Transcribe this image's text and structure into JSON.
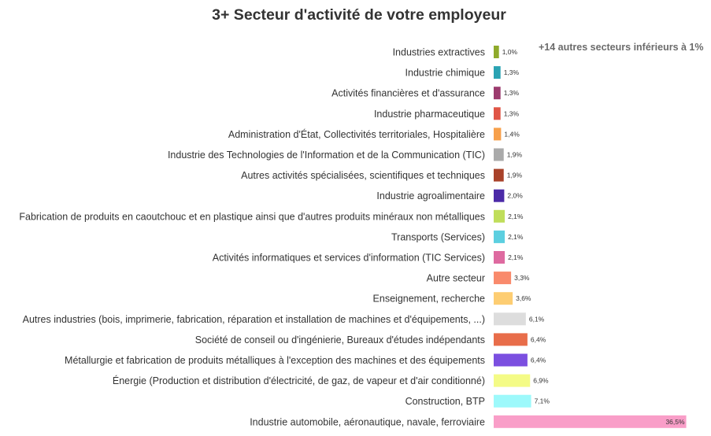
{
  "title": "3+ Secteur d'activité de votre employeur",
  "note": "+14 autres secteurs inférieurs à 1%",
  "chart_data": {
    "type": "bar",
    "orientation": "horizontal",
    "title": "3+ Secteur d'activité de votre employeur",
    "annotations": [
      "+14 autres secteurs inférieurs à 1%"
    ],
    "categories": [
      "Industries extractives",
      "Industrie chimique",
      "Activités financières et d'assurance",
      "Industrie pharmaceutique",
      "Administration d'État, Collectivités territoriales, Hospitalière",
      "Industrie des Technologies de l'Information et de la Communication (TIC)",
      "Autres activités spécialisées, scientifiques et techniques",
      "Industrie agroalimentaire",
      "Fabrication de produits en caoutchouc et en plastique ainsi que d'autres produits minéraux non métalliques",
      "Transports (Services)",
      "Activités informatiques et services d'information (TIC Services)",
      "Autre secteur",
      "Enseignement, recherche",
      "Autres industries (bois, imprimerie, fabrication, réparation et installation de machines et d'équipements, ...)",
      "Société de conseil ou d'ingénierie, Bureaux d'études indépendants",
      "Métallurgie et fabrication de produits métalliques à l'exception des machines et des équipements",
      "Énergie (Production et distribution d'électricité, de gaz, de vapeur et d'air conditionné)",
      "Construction, BTP",
      "Industrie automobile, aéronautique, navale, ferroviaire"
    ],
    "values": [
      1.0,
      1.3,
      1.3,
      1.3,
      1.4,
      1.9,
      1.9,
      2.0,
      2.1,
      2.1,
      2.1,
      3.3,
      3.6,
      6.1,
      6.4,
      6.4,
      6.9,
      7.1,
      36.5
    ],
    "value_labels": [
      "1,0%",
      "1,3%",
      "1,3%",
      "1,3%",
      "1,4%",
      "1,9%",
      "1,9%",
      "2,0%",
      "2,1%",
      "2,1%",
      "2,1%",
      "3,3%",
      "3,6%",
      "6,1%",
      "6,4%",
      "6,4%",
      "6,9%",
      "7,1%",
      "36,5%"
    ],
    "colors": [
      "#8faa2b",
      "#2aa3b3",
      "#9c3b6e",
      "#e05546",
      "#f7a04b",
      "#aaaaaa",
      "#a8422a",
      "#4b2aa7",
      "#c0de5a",
      "#5ccfe0",
      "#de6aa0",
      "#f98a6c",
      "#fdcd72",
      "#dddddd",
      "#e86d4a",
      "#7b4fe0",
      "#f4fb86",
      "#9df9fb",
      "#f99ec8"
    ],
    "units": "%",
    "xlim": [
      0,
      37
    ],
    "grid": false,
    "legend": "none"
  }
}
